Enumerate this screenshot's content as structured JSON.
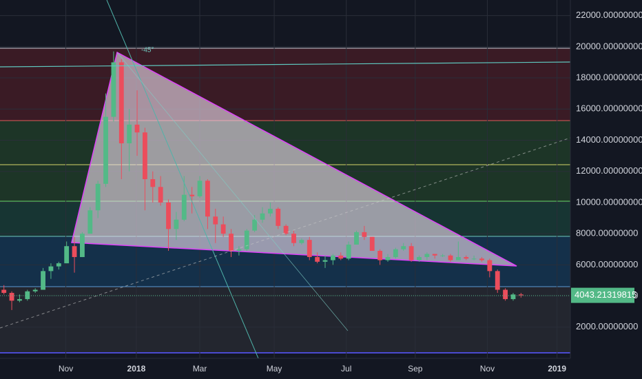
{
  "chart_data": {
    "type": "candlestick",
    "categories": [
      null,
      null,
      null,
      null,
      null,
      null,
      null,
      null,
      null,
      null,
      null,
      null,
      null,
      null,
      null,
      null,
      null,
      null,
      null,
      null,
      null,
      null,
      null,
      null,
      null,
      null,
      null,
      null,
      null,
      null,
      null,
      null,
      null,
      null,
      null,
      null,
      null,
      null,
      null,
      null,
      null,
      null,
      null,
      null,
      null,
      null,
      null,
      null,
      null,
      null,
      null,
      null,
      null,
      null,
      null,
      null,
      null,
      null,
      null,
      null,
      null,
      null,
      null,
      null,
      null,
      null,
      null
    ],
    "open": [
      4400,
      4200,
      3700,
      3800,
      4300,
      4400,
      5600,
      5900,
      6100,
      7200,
      6500,
      8000,
      9500,
      11200,
      15500,
      19000,
      13800,
      15000,
      14500,
      11500,
      11000,
      10000,
      8300,
      8900,
      10500,
      10400,
      11400,
      9100,
      8600,
      8000,
      6900,
      7000,
      8200,
      8900,
      9300,
      9600,
      8500,
      8000,
      7400,
      7600,
      6500,
      6200,
      6300,
      6600,
      6400,
      7300,
      8100,
      7800,
      6900,
      6300,
      6500,
      7000,
      7200,
      6300,
      6500,
      6700,
      6600,
      6600,
      6300,
      6500,
      6400,
      6400,
      6300,
      5600,
      4400,
      3800,
      4100
    ],
    "high": [
      4700,
      4300,
      4100,
      4400,
      4500,
      5800,
      6100,
      6200,
      7500,
      7800,
      8100,
      9700,
      11400,
      17000,
      19700,
      19200,
      16000,
      17200,
      14800,
      12000,
      11700,
      10200,
      9400,
      11700,
      11000,
      11700,
      11500,
      9600,
      9100,
      8300,
      7200,
      8300,
      9200,
      9700,
      10000,
      9700,
      8600,
      8200,
      7700,
      7800,
      6800,
      6600,
      6700,
      6800,
      7500,
      8200,
      8500,
      7800,
      7000,
      6700,
      7100,
      7400,
      7400,
      6600,
      6800,
      6700,
      6700,
      6700,
      7500,
      6600,
      6600,
      6500,
      6400,
      5700,
      4500,
      4200,
      4200
    ],
    "low": [
      4100,
      3100,
      3600,
      3700,
      4200,
      4400,
      5100,
      5700,
      6100,
      5500,
      6500,
      8000,
      9000,
      11000,
      15200,
      11500,
      12000,
      13000,
      9500,
      10000,
      9800,
      6900,
      7600,
      8800,
      9300,
      10300,
      8300,
      7400,
      7800,
      6500,
      6600,
      6900,
      8100,
      8700,
      9100,
      8300,
      7900,
      7200,
      7300,
      6300,
      6100,
      5800,
      6000,
      6300,
      6300,
      7300,
      7600,
      6900,
      6000,
      6200,
      6400,
      6900,
      6200,
      6200,
      6300,
      6400,
      6500,
      6200,
      6300,
      6300,
      6300,
      6200,
      5200,
      4200,
      3700,
      3700,
      3900
    ],
    "close": [
      4200,
      3700,
      3800,
      4300,
      4400,
      5600,
      5900,
      6100,
      7200,
      6500,
      8000,
      9500,
      11200,
      15500,
      19000,
      13800,
      15000,
      14500,
      11500,
      11000,
      10000,
      8300,
      8900,
      10500,
      10400,
      11400,
      9100,
      8600,
      8000,
      6900,
      7000,
      8200,
      8900,
      9300,
      9600,
      8500,
      8000,
      7400,
      7600,
      6500,
      6200,
      6300,
      6600,
      6400,
      7300,
      8100,
      7800,
      6900,
      6300,
      6500,
      7000,
      7200,
      6300,
      6500,
      6700,
      6600,
      6600,
      6300,
      6500,
      6400,
      6400,
      6300,
      5600,
      4400,
      3800,
      4100,
      4043.21319815
    ],
    "up_color": "#53b987",
    "down_color": "#eb4d5c",
    "ylim": [
      0,
      23000
    ],
    "yticks": [
      {
        "value": 2000,
        "label": "2000.00000000"
      },
      {
        "value": 4000,
        "label": "4000.00000000"
      },
      {
        "value": 6000,
        "label": "6000.00000000"
      },
      {
        "value": 8000,
        "label": "8000.00000000"
      },
      {
        "value": 10000,
        "label": "10000.00000000"
      },
      {
        "value": 12000,
        "label": "12000.00000000"
      },
      {
        "value": 14000,
        "label": "14000.00000000"
      },
      {
        "value": 16000,
        "label": "16000.00000000"
      },
      {
        "value": 18000,
        "label": "18000.00000000"
      },
      {
        "value": 20000,
        "label": "20000.00000000"
      },
      {
        "value": 22000,
        "label": "22000.00000000"
      }
    ],
    "xlim": [
      -0.5,
      72.3
    ],
    "xticks": [
      {
        "value": 7.9,
        "label": "Nov"
      },
      {
        "value": 16.9,
        "label": "2018"
      },
      {
        "value": 25.0,
        "label": "Mar"
      },
      {
        "value": 34.5,
        "label": "May"
      },
      {
        "value": 43.7,
        "label": "Jul"
      },
      {
        "value": 52.5,
        "label": "Sep"
      },
      {
        "value": 61.7,
        "label": "Nov"
      },
      {
        "value": 70.6,
        "label": "2019"
      }
    ],
    "grid": true,
    "annotations": [
      "-45°"
    ]
  }
}
